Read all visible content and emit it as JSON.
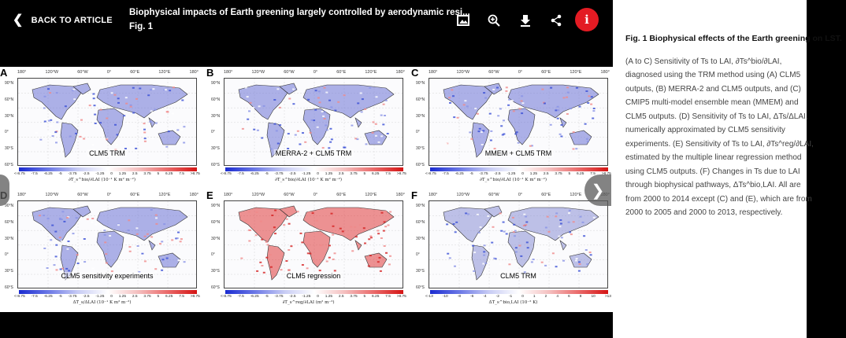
{
  "header": {
    "back_label": "BACK TO ARTICLE",
    "title": "Biophysical impacts of Earth greening largely controlled by aerodynamic resi...",
    "subtitle": "Fig. 1",
    "icons": [
      "gallery-icon",
      "zoom-in-icon",
      "download-icon",
      "share-icon",
      "info-icon"
    ]
  },
  "figure": {
    "lon_ticks": [
      "180°",
      "120°W",
      "60°W",
      "0°",
      "60°E",
      "120°E",
      "180°"
    ],
    "lat_ticks": [
      "90°N",
      "60°N",
      "30°N",
      "0°",
      "30°S",
      "60°S"
    ],
    "colorbar_ticks": [
      "<-8.75",
      "-7.5",
      "-6.25",
      "-5",
      "-3.75",
      "-2.5",
      "-1.25",
      "0",
      "1.25",
      "2.5",
      "3.75",
      "5",
      "6.25",
      "7.5",
      ">8.75"
    ],
    "colorbar_ticks_f": [
      "<-13",
      "-10",
      "-8",
      "-6",
      "-4",
      "-2",
      "-1",
      "0",
      "1",
      "2",
      "4",
      "6",
      "8",
      "10",
      ">13"
    ],
    "panels": [
      {
        "label": "A",
        "caption": "CLM5 TRM",
        "unit": "∂T_s^bio/∂LAI (10⁻¹ K m² m⁻²)",
        "colors": {
          "accent": "#6b73d6"
        }
      },
      {
        "label": "B",
        "caption": "MERRA-2 + CLM5 TRM",
        "unit": "∂T_s^bio/∂LAI (10⁻¹ K m² m⁻²)",
        "colors": {
          "accent": "#6b73d6"
        }
      },
      {
        "label": "C",
        "caption": "MMEM + CLM5 TRM",
        "unit": "∂T_s^bio/∂LAI (10⁻¹ K m² m⁻²)",
        "colors": {
          "accent": "#6b73d6"
        }
      },
      {
        "label": "D",
        "caption": "CLM5 sensitivity experiments",
        "unit": "ΔT_s/ΔLAI (10⁻¹ K m² m⁻²)",
        "colors": {
          "accent": "#6b73d6"
        }
      },
      {
        "label": "E",
        "caption": "CLM5 regression",
        "unit": "∂T_s^reg/∂LAI (m² m⁻²)",
        "colors": {
          "accent": "#e03a3a"
        }
      },
      {
        "label": "F",
        "caption": "CLM5 TRM",
        "unit": "ΔT_s^bio,LAI (10⁻² K)",
        "colors": {
          "accent": "#8a8fd6"
        }
      }
    ]
  },
  "caption_panel": {
    "title": "Fig. 1 Biophysical effects of the Earth greening on LST.",
    "body": "(A to C) Sensitivity of Ts to LAI, ∂Ts^bio/∂LAI, diagnosed using the TRM method using (A) CLM5 outputs, (B) MERRA-2 and CLM5 outputs, and (C) CMIP5 multi-model ensemble mean (MMEM) and CLM5 outputs. (D) Sensitivity of Ts to LAI, ΔTs/ΔLAI, numerically approximated by CLM5 sensitivity experiments. (E) Sensitivity of Ts to LAI, ∂Ts^reg/∂LAI, estimated by the multiple linear regression method using CLM5 outputs. (F) Changes in Ts due to LAI through biophysical pathways, ΔTs^bio,LAI. All are from 2000 to 2014 except (C) and (E), which are from 2000 to 2005 and 2000 to 2013, respectively."
  },
  "colors": {
    "info_button": "#e31b23",
    "background": "#000000",
    "caption_bg": "#ffffff"
  }
}
